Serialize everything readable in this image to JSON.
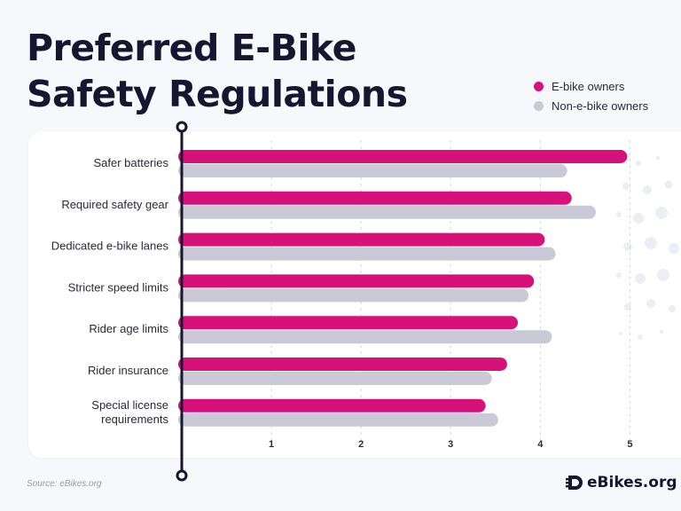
{
  "title": "Preferred E-Bike Safety Regulations",
  "legend": [
    {
      "label": "E-bike owners",
      "color": "#d6117a"
    },
    {
      "label": "Non-e-bike owners",
      "color": "#c9cad6"
    }
  ],
  "source": "Source: eBikes.org",
  "brand": "eBikes.org",
  "chart_data": {
    "type": "bar",
    "orientation": "horizontal",
    "title": "Preferred E-Bike Safety Regulations",
    "categories": [
      "Safer batteries",
      "Required safety gear",
      "Dedicated e-bike lanes",
      "Stricter speed limits",
      "Rider age limits",
      "Rider insurance",
      "Special license requirements"
    ],
    "series": [
      {
        "name": "E-bike owners",
        "color": "#d6117a",
        "values": [
          4.97,
          4.35,
          4.05,
          3.93,
          3.75,
          3.63,
          3.39
        ]
      },
      {
        "name": "Non-e-bike owners",
        "color": "#c9cad6",
        "values": [
          4.3,
          4.62,
          4.17,
          3.87,
          4.13,
          3.46,
          3.53
        ]
      }
    ],
    "xticks": [
      1,
      2,
      3,
      4,
      5
    ],
    "xlim": [
      0,
      5.57
    ],
    "grid": true,
    "legend_position": "top-right"
  }
}
